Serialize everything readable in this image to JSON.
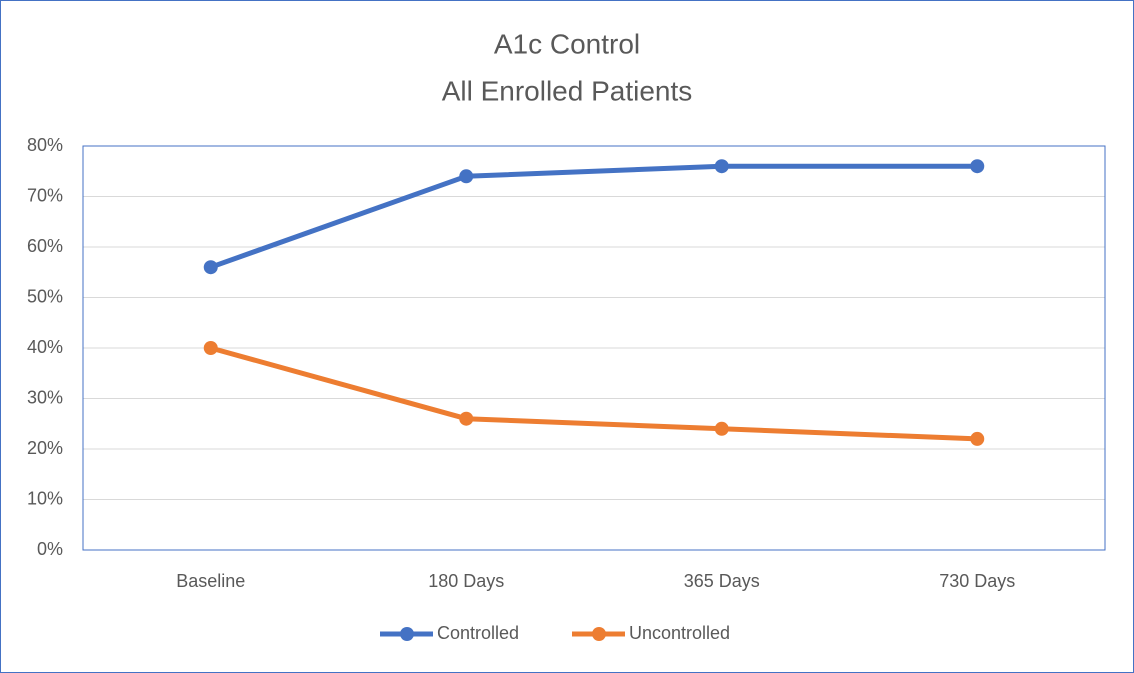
{
  "chart_data": {
    "type": "line",
    "title": "A1c Control",
    "subtitle": "All Enrolled Patients",
    "categories": [
      "Baseline",
      "180 Days",
      "365 Days",
      "730 Days"
    ],
    "series": [
      {
        "name": "Controlled",
        "color": "#4472c4",
        "values": [
          56,
          74,
          76,
          76
        ]
      },
      {
        "name": "Uncontrolled",
        "color": "#ed7d31",
        "values": [
          40,
          26,
          24,
          22
        ]
      }
    ],
    "ylim": [
      0,
      80
    ],
    "yticks": [
      {
        "value": 0,
        "label": "0%"
      },
      {
        "value": 10,
        "label": "10%"
      },
      {
        "value": 20,
        "label": "20%"
      },
      {
        "value": 30,
        "label": "30%"
      },
      {
        "value": 40,
        "label": "40%"
      },
      {
        "value": 50,
        "label": "50%"
      },
      {
        "value": 60,
        "label": "60%"
      },
      {
        "value": 70,
        "label": "70%"
      },
      {
        "value": 80,
        "label": "80%"
      }
    ],
    "grid": true,
    "legend": "bottom"
  }
}
